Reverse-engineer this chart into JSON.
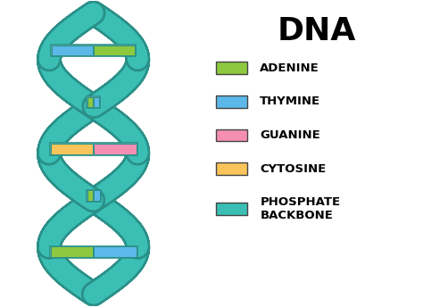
{
  "title": "DNA",
  "title_fontsize": 26,
  "title_fontweight": "bold",
  "background_color": "#ffffff",
  "backbone_color": "#3bbfb5",
  "backbone_edge_color": "#2a9088",
  "adenine_color": "#8dc83f",
  "thymine_color": "#5bb8e8",
  "guanine_color": "#f48fb1",
  "cytosine_color": "#f9c45a",
  "legend_items": [
    {
      "label": "ADENINE",
      "color": "#8dc83f"
    },
    {
      "label": "THYMINE",
      "color": "#5bb8e8"
    },
    {
      "label": "GUANINE",
      "color": "#f48fb1"
    },
    {
      "label": "CYTOSINE",
      "color": "#f9c45a"
    },
    {
      "label": "PHOSPHATE\nBACKBONE",
      "color": "#3bbfb5"
    }
  ],
  "rung_pairs": [
    [
      "#8dc83f",
      "#5bb8e8"
    ],
    [
      "#5bb8e8",
      "#8dc83f"
    ],
    [
      "#f48fb1",
      "#f9c45a"
    ],
    [
      "#8dc83f",
      "#5bb8e8"
    ],
    [
      "#5bb8e8",
      "#8dc83f"
    ]
  ]
}
